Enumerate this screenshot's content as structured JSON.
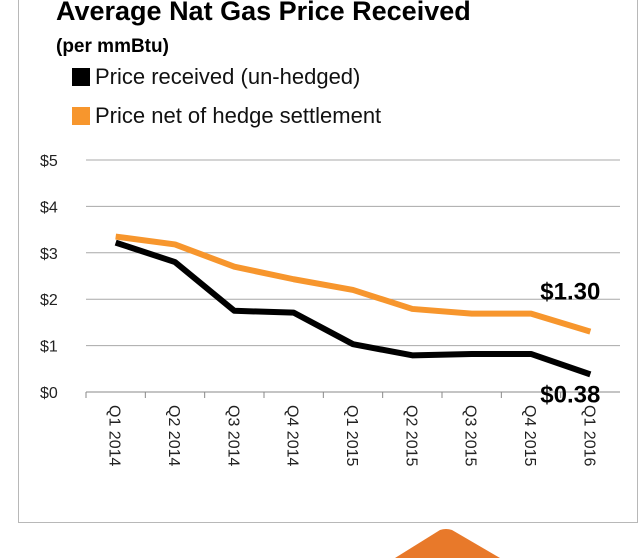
{
  "chart_data": {
    "type": "line",
    "title": "Average Nat Gas Price Received",
    "subtitle": "(per mmBtu)",
    "categories": [
      "Q1 2014",
      "Q2 2014",
      "Q3 2014",
      "Q4 2014",
      "Q1 2015",
      "Q2 2015",
      "Q3 2015",
      "Q4 2015",
      "Q1 2016"
    ],
    "series": [
      {
        "name": "Price received (un-hedged)",
        "color": "#000000",
        "values": [
          3.22,
          2.8,
          1.75,
          1.71,
          1.03,
          0.79,
          0.82,
          0.82,
          0.38
        ]
      },
      {
        "name": "Price net of hedge settlement",
        "color": "#f7962d",
        "values": [
          3.35,
          3.18,
          2.7,
          2.43,
          2.2,
          1.79,
          1.69,
          1.69,
          1.3
        ]
      }
    ],
    "y_ticks": [
      "$0",
      "$1",
      "$2",
      "$3",
      "$4",
      "$5"
    ],
    "ylim": [
      0,
      5
    ],
    "grid": true,
    "legend_position": "top-left",
    "annotations": [
      {
        "text": "$1.30",
        "series": 1,
        "index": 8
      },
      {
        "text": "$0.38",
        "series": 0,
        "index": 8
      }
    ]
  },
  "decoration": {
    "accent": "#e8792a"
  }
}
